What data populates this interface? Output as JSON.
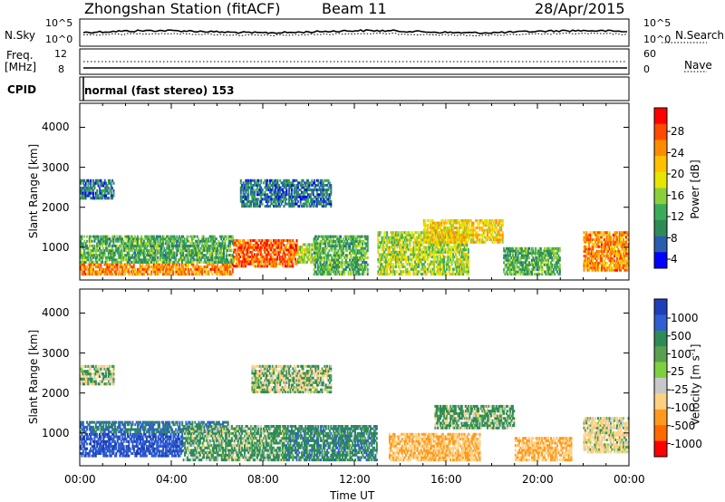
{
  "header": {
    "station": "Zhongshan Station (fitACF)",
    "beam": "Beam 11",
    "date": "28/Apr/2015"
  },
  "strip": {
    "nsky_label": "N.Sky",
    "nsky_ticks": [
      "10^5",
      "10^0"
    ],
    "nsearch_label": "N.Search",
    "nsearch_ticks": [
      "10^5",
      "10^0"
    ],
    "freq_label_1": "Freq.",
    "freq_label_2": "[MHz]",
    "freq_ticks": [
      "12",
      "8"
    ],
    "nave_label": "Nave",
    "nave_ticks": [
      "60",
      "0"
    ],
    "cpid_label": "CPID",
    "cpid_value": "normal (fast stereo) 153"
  },
  "axes": {
    "ylabel": "Slant Range [km]",
    "xlabel": "Time UT",
    "yticks": [
      "4000",
      "3000",
      "2000",
      "1000"
    ],
    "xticks": [
      "00:00",
      "04:00",
      "08:00",
      "12:00",
      "16:00",
      "20:00",
      "00:00"
    ]
  },
  "power_scale": {
    "label": "Power [dB]",
    "ticks": [
      "28",
      "24",
      "20",
      "16",
      "12",
      "8",
      "4"
    ],
    "colors": [
      "#ff0000",
      "#ff4a00",
      "#ff8c00",
      "#ffc000",
      "#e6e600",
      "#8ccf3c",
      "#3caa5a",
      "#2e8b57",
      "#2a5db0",
      "#0000ff"
    ]
  },
  "velocity_scale": {
    "label": "Velocity [m s",
    "label_sup": "-1",
    "label_end": "]",
    "ticks": [
      "1000",
      "500",
      "100",
      "25",
      "-25",
      "-100",
      "-500",
      "-1000"
    ],
    "colors": [
      "#1f3fb8",
      "#2f5fd0",
      "#2e8b57",
      "#5aa050",
      "#7fd040",
      "#c8c8c8",
      "#ffd080",
      "#ff9a20",
      "#ff6a00",
      "#ff0000"
    ]
  },
  "chart_data": [
    {
      "type": "heatmap",
      "title": "Power [dB]",
      "xlabel": "Time UT",
      "ylabel": "Slant Range [km]",
      "xlim": [
        "00:00",
        "24:00"
      ],
      "ylim": [
        180,
        4600
      ],
      "zlim": [
        0,
        30
      ],
      "echo_regions": [
        {
          "t_start": 0.0,
          "t_end": 6.7,
          "range_min": 300,
          "range_max": 600,
          "power_db": 24
        },
        {
          "t_start": 0.0,
          "t_end": 6.7,
          "range_min": 600,
          "range_max": 1300,
          "power_db": 12
        },
        {
          "t_start": 0.0,
          "t_end": 1.5,
          "range_min": 2200,
          "range_max": 2700,
          "power_db": 8
        },
        {
          "t_start": 6.7,
          "t_end": 9.5,
          "range_min": 500,
          "range_max": 1200,
          "power_db": 26
        },
        {
          "t_start": 9.5,
          "t_end": 10.5,
          "range_min": 600,
          "range_max": 1100,
          "power_db": 16
        },
        {
          "t_start": 7.0,
          "t_end": 11.0,
          "range_min": 2000,
          "range_max": 2700,
          "power_db": 8
        },
        {
          "t_start": 10.2,
          "t_end": 12.6,
          "range_min": 300,
          "range_max": 1300,
          "power_db": 12
        },
        {
          "t_start": 13.0,
          "t_end": 17.0,
          "range_min": 300,
          "range_max": 1400,
          "power_db": 16
        },
        {
          "t_start": 15.0,
          "t_end": 18.5,
          "range_min": 1100,
          "range_max": 1700,
          "power_db": 20
        },
        {
          "t_start": 18.5,
          "t_end": 21.0,
          "range_min": 300,
          "range_max": 1000,
          "power_db": 12
        },
        {
          "t_start": 22.0,
          "t_end": 24.0,
          "range_min": 400,
          "range_max": 1400,
          "power_db": 24
        }
      ]
    },
    {
      "type": "heatmap",
      "title": "Velocity [m s-1]",
      "xlabel": "Time UT",
      "ylabel": "Slant Range [km]",
      "xlim": [
        "00:00",
        "24:00"
      ],
      "ylim": [
        180,
        4600
      ],
      "zlim": [
        -1000,
        1000
      ],
      "echo_regions": [
        {
          "t_start": 0.0,
          "t_end": 4.5,
          "range_min": 400,
          "range_max": 1000,
          "velocity": 700
        },
        {
          "t_start": 0.0,
          "t_end": 6.5,
          "range_min": 1000,
          "range_max": 1300,
          "velocity": 300
        },
        {
          "t_start": 4.5,
          "t_end": 9.0,
          "range_min": 300,
          "range_max": 1200,
          "velocity": 100
        },
        {
          "t_start": 0.0,
          "t_end": 1.5,
          "range_min": 2200,
          "range_max": 2700,
          "velocity": 0
        },
        {
          "t_start": 7.5,
          "t_end": 11.0,
          "range_min": 2000,
          "range_max": 2700,
          "velocity": 0
        },
        {
          "t_start": 9.0,
          "t_end": 13.0,
          "range_min": 300,
          "range_max": 1200,
          "velocity": 200
        },
        {
          "t_start": 13.5,
          "t_end": 17.5,
          "range_min": 300,
          "range_max": 1000,
          "velocity": -300
        },
        {
          "t_start": 15.5,
          "t_end": 19.0,
          "range_min": 1100,
          "range_max": 1700,
          "velocity": 100
        },
        {
          "t_start": 19.0,
          "t_end": 21.5,
          "range_min": 300,
          "range_max": 900,
          "velocity": -300
        },
        {
          "t_start": 22.0,
          "t_end": 24.0,
          "range_min": 500,
          "range_max": 1400,
          "velocity": -100
        }
      ]
    }
  ]
}
